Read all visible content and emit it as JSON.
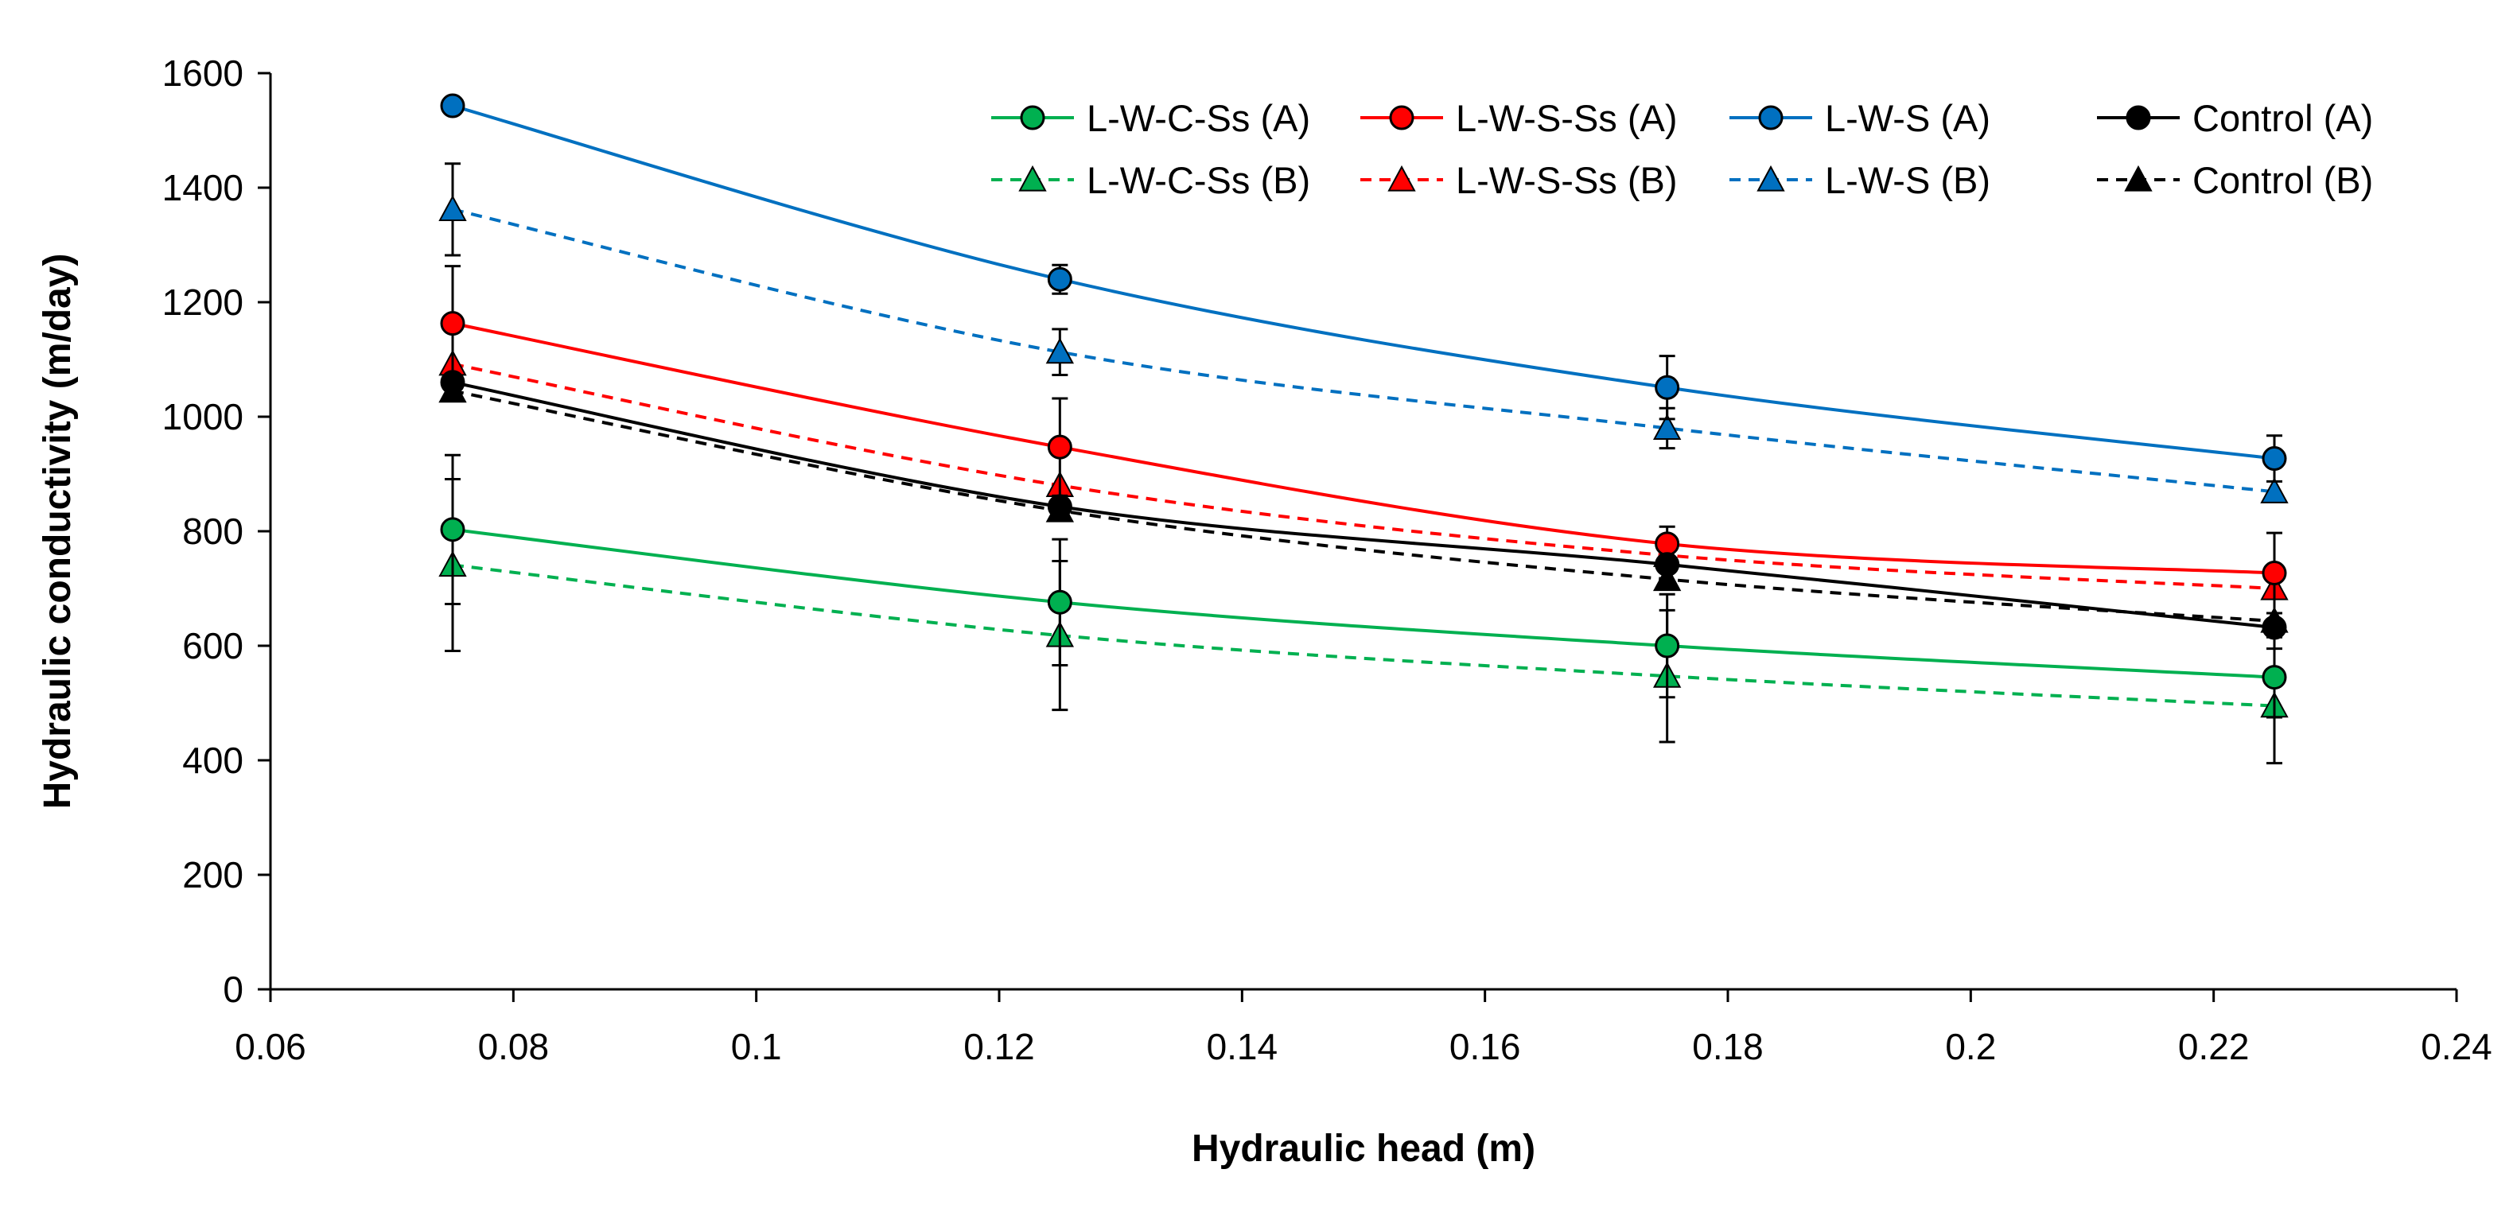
{
  "chart_data": {
    "type": "line",
    "title": "",
    "xlabel": "Hydraulic head (m)",
    "ylabel": "Hydraulic conductivity (m/day)",
    "xlim": [
      0.06,
      0.24
    ],
    "ylim": [
      0,
      1600
    ],
    "xticks": [
      0.06,
      0.08,
      0.1,
      0.12,
      0.14,
      0.16,
      0.18,
      0.2,
      0.22,
      0.24
    ],
    "xtick_labels": [
      "0.06",
      "0.08",
      "0.1",
      "0.12",
      "0.14",
      "0.16",
      "0.18",
      "0.2",
      "0.22",
      "0.24"
    ],
    "yticks": [
      0,
      200,
      400,
      600,
      800,
      1000,
      1200,
      1400,
      1600
    ],
    "ytick_labels": [
      "0",
      "200",
      "400",
      "600",
      "800",
      "1000",
      "1200",
      "1400",
      "1600"
    ],
    "grid": false,
    "legend_position": "top-right",
    "x": [
      0.075,
      0.125,
      0.175,
      0.225
    ],
    "series": [
      {
        "name": "L-W-C-Ss (A)",
        "color": "#00b050",
        "marker": "circle",
        "dash": "solid",
        "values": [
          803,
          676,
          600,
          545
        ],
        "errors": [
          130,
          110,
          90,
          70
        ]
      },
      {
        "name": "L-W-S-Ss (A)",
        "color": "#ff0000",
        "marker": "circle",
        "dash": "solid",
        "values": [
          1163,
          947,
          778,
          727
        ],
        "errors": [
          100,
          85,
          30,
          70
        ]
      },
      {
        "name": "L-W-S (A)",
        "color": "#0070c0",
        "marker": "circle",
        "dash": "solid",
        "values": [
          1543,
          1240,
          1051,
          927
        ],
        "errors": [
          0,
          25,
          55,
          40
        ]
      },
      {
        "name": "Control (A)",
        "color": "#000000",
        "marker": "circle",
        "dash": "solid",
        "values": [
          1060,
          843,
          742,
          632
        ],
        "errors": [
          0,
          0,
          0,
          0
        ]
      },
      {
        "name": "L-W-C-Ss (B)",
        "color": "#00b050",
        "marker": "triangle",
        "dash": "dashed",
        "values": [
          741,
          618,
          547,
          495
        ],
        "errors": [
          150,
          130,
          115,
          100
        ]
      },
      {
        "name": "L-W-S-Ss (B)",
        "color": "#ff0000",
        "marker": "triangle",
        "dash": "dashed",
        "values": [
          1092,
          880,
          758,
          700
        ],
        "errors": [
          0,
          0,
          0,
          0
        ]
      },
      {
        "name": "L-W-S (B)",
        "color": "#0070c0",
        "marker": "triangle",
        "dash": "dashed",
        "values": [
          1362,
          1113,
          980,
          869
        ],
        "errors": [
          80,
          40,
          35,
          0
        ]
      },
      {
        "name": "Control (B)",
        "color": "#000000",
        "marker": "triangle",
        "dash": "dashed",
        "values": [
          1045,
          836,
          716,
          643
        ],
        "errors": [
          0,
          0,
          0,
          0
        ]
      }
    ],
    "legend_order": [
      0,
      1,
      2,
      3,
      4,
      5,
      6,
      7
    ]
  }
}
